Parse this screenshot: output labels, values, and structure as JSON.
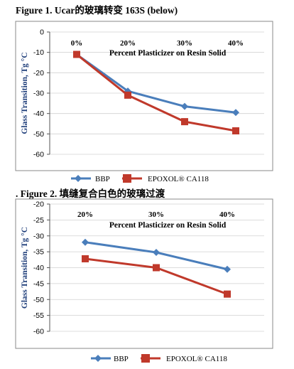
{
  "header_fragment": "",
  "figure1": {
    "title": "Figure 1. Ucar的玻璃转变 163S (below)"
  },
  "figure2": {
    "title": ". Figure 2. 填缝复合白色的玻璃过渡"
  },
  "chart_data": [
    {
      "type": "line",
      "title": "Figure 1. Ucar的玻璃转变 163S (below)",
      "xlabel": "Percent Plasticizer on Resin Solid",
      "ylabel": "Glass Transition, Tg °C",
      "categories": [
        "0%",
        "20%",
        "30%",
        "40%"
      ],
      "ylim": [
        -60,
        0
      ],
      "yticks": [
        0,
        -10,
        -20,
        -30,
        -40,
        -50,
        -60
      ],
      "grid": true,
      "legend_position": "bottom",
      "series": [
        {
          "name": "BBP",
          "color": "#4a7ebb",
          "marker": "diamond",
          "values": [
            -11,
            -29,
            -36.5,
            -39.5
          ]
        },
        {
          "name": "EPOXOL® CA118",
          "color": "#c0392b",
          "marker": "square",
          "values": [
            -11,
            -31,
            -44,
            -48.5
          ]
        }
      ]
    },
    {
      "type": "line",
      "title": ". Figure 2. 填缝复合白色的玻璃过渡",
      "xlabel": "Percent Plasticizer on Resin Solid",
      "ylabel": "Glass Transition, Tg °C",
      "categories": [
        "20%",
        "30%",
        "40%"
      ],
      "ylim": [
        -60,
        -20
      ],
      "yticks": [
        -20,
        -25,
        -30,
        -35,
        -40,
        -45,
        -50,
        -55,
        -60
      ],
      "grid": true,
      "legend_position": "bottom",
      "series": [
        {
          "name": "BBP",
          "color": "#4a7ebb",
          "marker": "diamond",
          "values": [
            -32,
            -35.2,
            -40.5
          ]
        },
        {
          "name": "EPOXOL® CA118",
          "color": "#c0392b",
          "marker": "square",
          "values": [
            -37.2,
            -40,
            -48.3
          ]
        }
      ]
    }
  ]
}
